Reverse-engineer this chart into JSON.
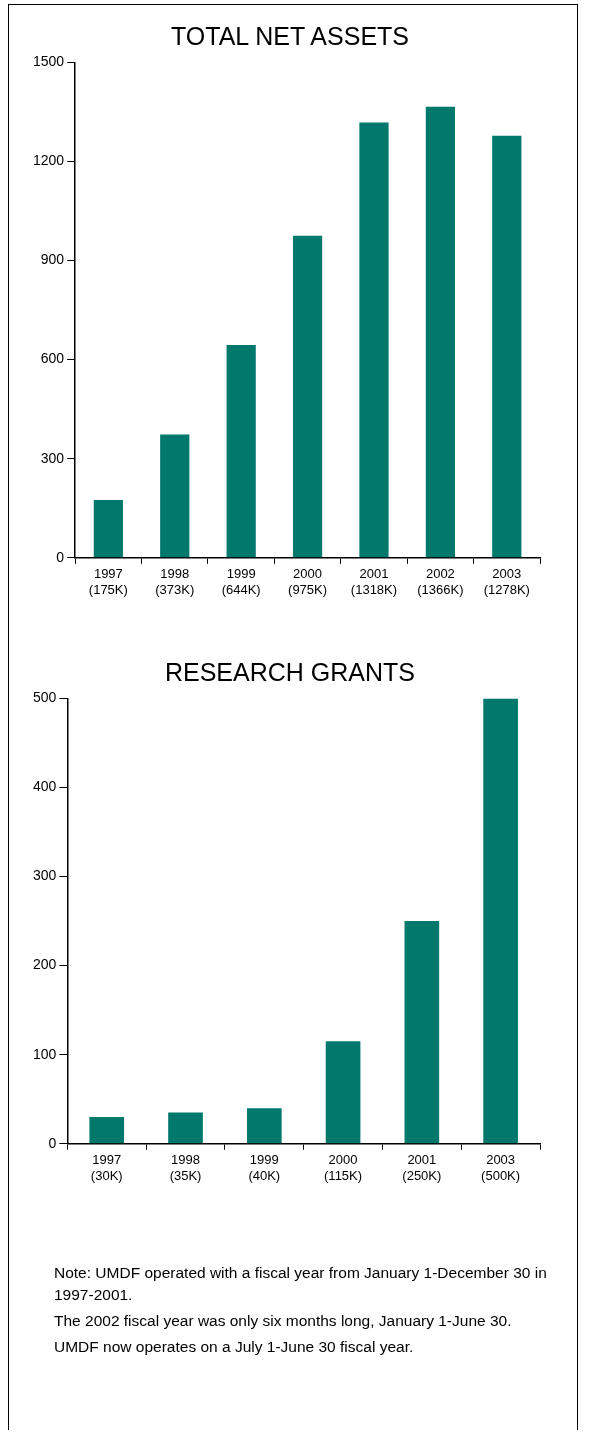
{
  "chart_data": [
    {
      "type": "bar",
      "title": "TOTAL NET ASSETS",
      "categories": [
        "1997\n(175K)",
        "1998\n(373K)",
        "1999\n(644K)",
        "2000\n(975K)",
        "2001\n(1318K)",
        "2002\n(1366K)",
        "2003\n(1278K)"
      ],
      "values": [
        175,
        373,
        644,
        975,
        1318,
        1366,
        1278
      ],
      "color": "#00786c",
      "ylim": [
        0,
        1500
      ],
      "yticks": [
        0,
        300,
        600,
        900,
        1200,
        1500
      ]
    },
    {
      "type": "bar",
      "title": "RESEARCH GRANTS",
      "categories": [
        "1997\n(30K)",
        "1998\n(35K)",
        "1999\n(40K)",
        "2000\n(115K)",
        "2001\n(250K)",
        "2003\n(500K)"
      ],
      "values": [
        30,
        35,
        40,
        115,
        250,
        500
      ],
      "color": "#00786c",
      "ylim": [
        0,
        500
      ],
      "yticks": [
        0,
        100,
        200,
        300,
        400,
        500
      ],
      "annotations": [
        "Note: UMDF operated with a fiscal year from January 1-December 30 in 1997-2001.",
        "The 2002 fiscal year was only six months long, January 1-June 30.",
        "UMDF now operates on a July 1-June 30 fiscal year."
      ]
    }
  ]
}
